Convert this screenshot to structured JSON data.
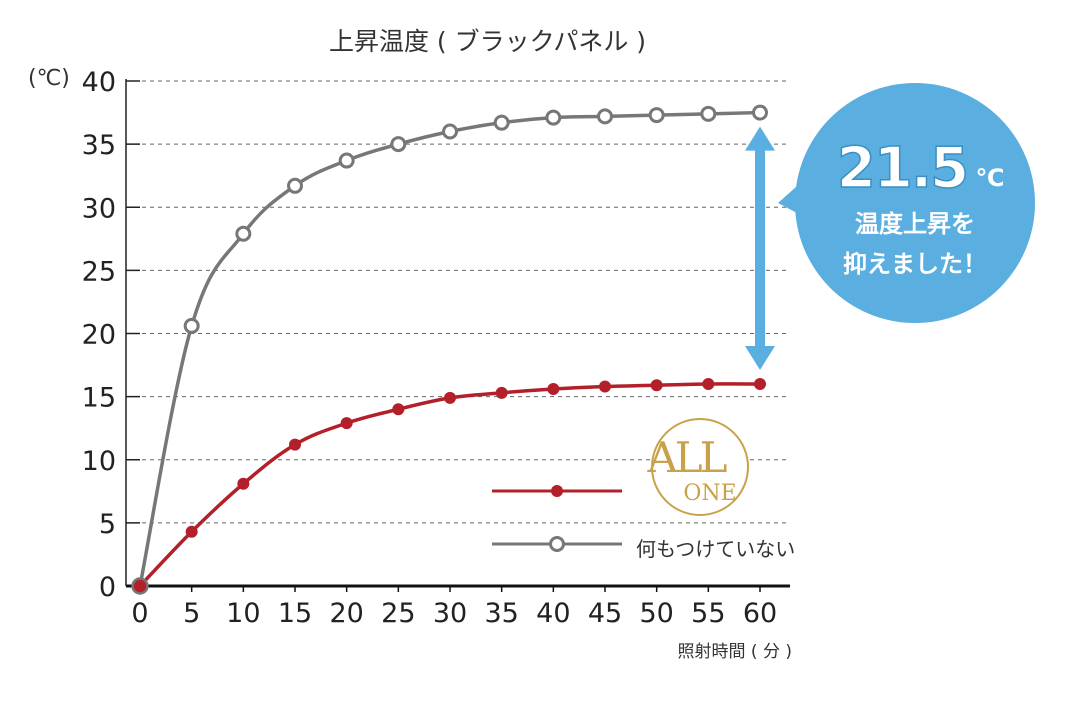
{
  "chart_data": {
    "type": "line",
    "title": "上昇温度 ( ブラックパネル )",
    "ylabel": "(℃)",
    "xlabel": "照射時間 ( 分 )",
    "x": [
      0,
      5,
      10,
      15,
      20,
      25,
      30,
      35,
      40,
      45,
      50,
      55,
      60
    ],
    "xticks": [
      "0",
      "5",
      "10",
      "15",
      "20",
      "25",
      "30",
      "35",
      "40",
      "45",
      "50",
      "55",
      "60"
    ],
    "yticks": [
      "0",
      "5",
      "10",
      "15",
      "20",
      "25",
      "30",
      "35",
      "40"
    ],
    "ylim": [
      0,
      40
    ],
    "grid": true,
    "series": [
      {
        "name": "ALL ONE",
        "color": "#b3202a",
        "marker": "filled-circle",
        "values": [
          0,
          4.3,
          8.1,
          11.2,
          12.9,
          14.0,
          14.9,
          15.3,
          15.6,
          15.8,
          15.9,
          16.0,
          16.0
        ]
      },
      {
        "name": "何もつけていない",
        "color": "#777777",
        "marker": "hollow-circle",
        "values": [
          0,
          20.6,
          27.9,
          31.7,
          33.7,
          35.0,
          36.0,
          36.7,
          37.1,
          37.2,
          37.3,
          37.4,
          37.5
        ]
      }
    ],
    "annotation": {
      "value": "21.5",
      "unit": "℃",
      "line1": "温度上昇を",
      "line2": "抑えました！",
      "color": "#5aaee0"
    },
    "logo": {
      "line1": "ALL",
      "line2": "ONE",
      "color": "#c8a24a"
    }
  }
}
